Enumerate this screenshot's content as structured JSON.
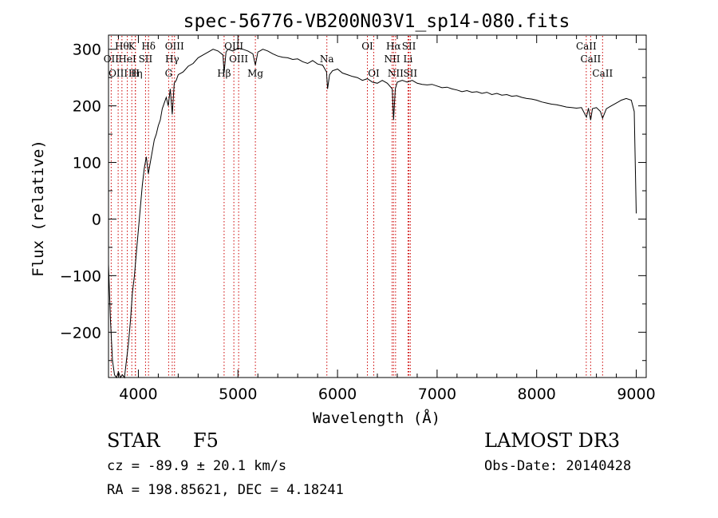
{
  "chart_data": {
    "type": "line",
    "title": "spec-56776-VB200N03V1_sp14-080.fits",
    "xlabel": "Wavelength (Å)",
    "ylabel": "Flux (relative)",
    "xlim": [
      3700,
      9100
    ],
    "ylim": [
      -280,
      325
    ],
    "xticks": [
      4000,
      5000,
      6000,
      7000,
      8000,
      9000
    ],
    "yticks": [
      -200,
      -100,
      0,
      100,
      200,
      300
    ],
    "series": [
      {
        "name": "flux",
        "points": [
          [
            3700,
            -80
          ],
          [
            3720,
            -180
          ],
          [
            3740,
            -250
          ],
          [
            3760,
            -275
          ],
          [
            3780,
            -280
          ],
          [
            3800,
            -270
          ],
          [
            3820,
            -280
          ],
          [
            3840,
            -275
          ],
          [
            3860,
            -280
          ],
          [
            3880,
            -250
          ],
          [
            3900,
            -220
          ],
          [
            3920,
            -180
          ],
          [
            3940,
            -130
          ],
          [
            3960,
            -100
          ],
          [
            3980,
            -60
          ],
          [
            4000,
            -20
          ],
          [
            4020,
            20
          ],
          [
            4040,
            60
          ],
          [
            4060,
            90
          ],
          [
            4080,
            110
          ],
          [
            4100,
            80
          ],
          [
            4120,
            100
          ],
          [
            4140,
            120
          ],
          [
            4160,
            140
          ],
          [
            4180,
            150
          ],
          [
            4200,
            165
          ],
          [
            4220,
            175
          ],
          [
            4240,
            195
          ],
          [
            4260,
            205
          ],
          [
            4280,
            215
          ],
          [
            4300,
            200
          ],
          [
            4320,
            230
          ],
          [
            4340,
            185
          ],
          [
            4360,
            240
          ],
          [
            4380,
            245
          ],
          [
            4400,
            255
          ],
          [
            4450,
            260
          ],
          [
            4500,
            270
          ],
          [
            4550,
            275
          ],
          [
            4600,
            285
          ],
          [
            4650,
            290
          ],
          [
            4700,
            295
          ],
          [
            4750,
            300
          ],
          [
            4800,
            297
          ],
          [
            4850,
            290
          ],
          [
            4861,
            258
          ],
          [
            4880,
            295
          ],
          [
            4900,
            300
          ],
          [
            4950,
            297
          ],
          [
            5000,
            302
          ],
          [
            5050,
            300
          ],
          [
            5100,
            297
          ],
          [
            5150,
            292
          ],
          [
            5175,
            272
          ],
          [
            5200,
            295
          ],
          [
            5250,
            300
          ],
          [
            5300,
            297
          ],
          [
            5350,
            292
          ],
          [
            5400,
            288
          ],
          [
            5450,
            286
          ],
          [
            5500,
            285
          ],
          [
            5550,
            282
          ],
          [
            5600,
            283
          ],
          [
            5650,
            278
          ],
          [
            5700,
            275
          ],
          [
            5750,
            280
          ],
          [
            5800,
            274
          ],
          [
            5850,
            272
          ],
          [
            5890,
            260
          ],
          [
            5900,
            230
          ],
          [
            5920,
            255
          ],
          [
            5950,
            262
          ],
          [
            6000,
            265
          ],
          [
            6050,
            258
          ],
          [
            6100,
            255
          ],
          [
            6150,
            252
          ],
          [
            6200,
            250
          ],
          [
            6250,
            245
          ],
          [
            6300,
            248
          ],
          [
            6350,
            242
          ],
          [
            6400,
            240
          ],
          [
            6450,
            245
          ],
          [
            6500,
            240
          ],
          [
            6550,
            230
          ],
          [
            6563,
            175
          ],
          [
            6580,
            230
          ],
          [
            6600,
            242
          ],
          [
            6650,
            245
          ],
          [
            6700,
            242
          ],
          [
            6750,
            245
          ],
          [
            6800,
            240
          ],
          [
            6850,
            238
          ],
          [
            6900,
            237
          ],
          [
            6950,
            238
          ],
          [
            7000,
            235
          ],
          [
            7050,
            232
          ],
          [
            7100,
            233
          ],
          [
            7150,
            230
          ],
          [
            7200,
            228
          ],
          [
            7250,
            225
          ],
          [
            7300,
            227
          ],
          [
            7350,
            224
          ],
          [
            7400,
            225
          ],
          [
            7450,
            222
          ],
          [
            7500,
            224
          ],
          [
            7550,
            220
          ],
          [
            7600,
            222
          ],
          [
            7650,
            219
          ],
          [
            7700,
            220
          ],
          [
            7750,
            217
          ],
          [
            7800,
            218
          ],
          [
            7850,
            215
          ],
          [
            7900,
            213
          ],
          [
            7950,
            212
          ],
          [
            8000,
            210
          ],
          [
            8050,
            207
          ],
          [
            8100,
            205
          ],
          [
            8150,
            203
          ],
          [
            8200,
            202
          ],
          [
            8250,
            200
          ],
          [
            8300,
            198
          ],
          [
            8350,
            197
          ],
          [
            8400,
            196
          ],
          [
            8450,
            197
          ],
          [
            8500,
            180
          ],
          [
            8520,
            196
          ],
          [
            8542,
            175
          ],
          [
            8560,
            195
          ],
          [
            8600,
            197
          ],
          [
            8640,
            190
          ],
          [
            8662,
            178
          ],
          [
            8700,
            195
          ],
          [
            8750,
            200
          ],
          [
            8800,
            205
          ],
          [
            8850,
            210
          ],
          [
            8900,
            213
          ],
          [
            8950,
            210
          ],
          [
            8980,
            190
          ],
          [
            9000,
            10
          ]
        ]
      }
    ],
    "lines": [
      {
        "wave": 3727,
        "label": "OII",
        "row": 2
      },
      {
        "wave": 3797,
        "label": "OIII",
        "row": 3
      },
      {
        "wave": 3835,
        "label": "Hθ",
        "row": 1
      },
      {
        "wave": 3889,
        "label": "HeI",
        "row": 2
      },
      {
        "wave": 3934,
        "label": "K",
        "row": 1
      },
      {
        "wave": 3970,
        "label": "Hη",
        "row": 3
      },
      {
        "wave": 3970,
        "label": "H",
        "row": 3
      },
      {
        "wave": 4072,
        "label": "SII",
        "row": 2
      },
      {
        "wave": 4102,
        "label": "Hδ",
        "row": 1
      },
      {
        "wave": 4304,
        "label": "G",
        "row": 3
      },
      {
        "wave": 4340,
        "label": "Hγ",
        "row": 2
      },
      {
        "wave": 4363,
        "label": "OIII",
        "row": 1
      },
      {
        "wave": 4861,
        "label": "Hβ",
        "row": 3
      },
      {
        "wave": 4959,
        "label": "OIII",
        "row": 1
      },
      {
        "wave": 5007,
        "label": "OIII",
        "row": 2
      },
      {
        "wave": 5175,
        "label": "Mg",
        "row": 3
      },
      {
        "wave": 5893,
        "label": "Na",
        "row": 2
      },
      {
        "wave": 6300,
        "label": "OI",
        "row": 1
      },
      {
        "wave": 6364,
        "label": "OI",
        "row": 3
      },
      {
        "wave": 6548,
        "label": "NII",
        "row": 2
      },
      {
        "wave": 6563,
        "label": "Hα",
        "row": 1
      },
      {
        "wave": 6583,
        "label": "NII",
        "row": 3
      },
      {
        "wave": 6708,
        "label": "Li",
        "row": 2
      },
      {
        "wave": 6717,
        "label": "SII",
        "row": 1
      },
      {
        "wave": 6731,
        "label": "SII",
        "row": 3
      },
      {
        "wave": 8498,
        "label": "CaII",
        "row": 1
      },
      {
        "wave": 8542,
        "label": "CaII",
        "row": 2
      },
      {
        "wave": 8662,
        "label": "CaII",
        "row": 3
      }
    ]
  },
  "info": {
    "class_label": "STAR",
    "subclass": "F5",
    "survey": "LAMOST DR3",
    "cz": "cz = -89.9 ± 20.1 km/s",
    "obs_date": "Obs-Date: 20140428",
    "coords": "RA = 198.85621, DEC =   4.18241"
  },
  "colors": {
    "line_marker": "#cc0000",
    "spectrum": "#000000"
  }
}
